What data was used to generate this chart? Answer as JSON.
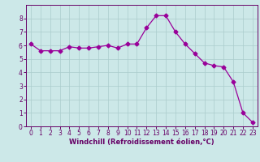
{
  "x": [
    0,
    1,
    2,
    3,
    4,
    5,
    6,
    7,
    8,
    9,
    10,
    11,
    12,
    13,
    14,
    15,
    16,
    17,
    18,
    19,
    20,
    21,
    22,
    23
  ],
  "y": [
    6.1,
    5.6,
    5.6,
    5.6,
    5.9,
    5.8,
    5.8,
    5.9,
    6.0,
    5.8,
    6.1,
    6.1,
    7.3,
    8.2,
    8.2,
    7.0,
    6.1,
    5.4,
    4.7,
    4.5,
    4.4,
    3.3,
    1.0,
    0.3
  ],
  "line_color": "#990099",
  "marker": "D",
  "marker_size": 2.5,
  "bg_color": "#cce8e8",
  "grid_color": "#aacccc",
  "xlabel": "Windchill (Refroidissement éolien,°C)",
  "xlim": [
    -0.5,
    23.5
  ],
  "ylim": [
    0,
    9
  ],
  "yticks": [
    0,
    1,
    2,
    3,
    4,
    5,
    6,
    7,
    8
  ],
  "xticks": [
    0,
    1,
    2,
    3,
    4,
    5,
    6,
    7,
    8,
    9,
    10,
    11,
    12,
    13,
    14,
    15,
    16,
    17,
    18,
    19,
    20,
    21,
    22,
    23
  ],
  "tick_color": "#660066",
  "label_color": "#660066",
  "tick_fontsize": 5.5,
  "xlabel_fontsize": 6.0
}
